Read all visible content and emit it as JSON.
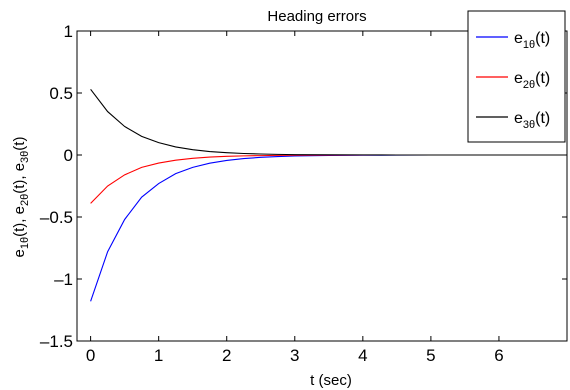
{
  "chart_data": {
    "type": "line",
    "title": "Heading errors",
    "xlabel": "t (sec)",
    "ylabel": {
      "parts": [
        {
          "base": "e",
          "sub": "1θ",
          "tail": "(t), "
        },
        {
          "base": "e",
          "sub": "2θ",
          "tail": "(t), "
        },
        {
          "base": "e",
          "sub": "3θ",
          "tail": "(t)"
        }
      ]
    },
    "xlim": [
      -0.2,
      7
    ],
    "ylim": [
      -1.5,
      1
    ],
    "xticks": [
      0,
      1,
      2,
      3,
      4,
      5,
      6
    ],
    "xtick_labels": [
      "0",
      "1",
      "2",
      "3",
      "4",
      "5",
      "6"
    ],
    "yticks": [
      -1.5,
      -1,
      -0.5,
      0,
      0.5,
      1
    ],
    "ytick_labels": [
      "–1.5",
      "–1",
      "–0.5",
      "0",
      "0.5",
      "1"
    ],
    "grid": false,
    "legend_position": "top-right",
    "x": [
      0,
      0.25,
      0.5,
      0.75,
      1,
      1.25,
      1.5,
      1.75,
      2,
      2.25,
      2.5,
      2.75,
      3,
      3.5,
      4,
      4.5,
      5,
      5.5,
      6,
      6.5,
      7
    ],
    "series": [
      {
        "name": "e_1θ(t)",
        "legend": {
          "base": "e",
          "sub": "1θ",
          "tail": "(t)"
        },
        "color": "#0000ff",
        "values": [
          -1.18,
          -0.78,
          -0.52,
          -0.34,
          -0.23,
          -0.15,
          -0.1,
          -0.066,
          -0.044,
          -0.029,
          -0.019,
          -0.013,
          -0.008,
          -0.004,
          -0.002,
          -0.001,
          0,
          0,
          0,
          0,
          0
        ]
      },
      {
        "name": "e_2θ(t)",
        "legend": {
          "base": "e",
          "sub": "2θ",
          "tail": "(t)"
        },
        "color": "#ff0000",
        "values": [
          -0.39,
          -0.25,
          -0.16,
          -0.1,
          -0.065,
          -0.042,
          -0.027,
          -0.017,
          -0.011,
          -0.007,
          -0.005,
          -0.003,
          -0.002,
          -0.001,
          0,
          0,
          0,
          0,
          0,
          0,
          0
        ]
      },
      {
        "name": "e_3θ(t)",
        "legend": {
          "base": "e",
          "sub": "3θ",
          "tail": "(t)"
        },
        "color": "#000000",
        "values": [
          0.53,
          0.35,
          0.23,
          0.15,
          0.1,
          0.065,
          0.043,
          0.028,
          0.019,
          0.012,
          0.008,
          0.005,
          0.003,
          0.002,
          0.001,
          0,
          0,
          0,
          0,
          0,
          0
        ]
      }
    ]
  }
}
